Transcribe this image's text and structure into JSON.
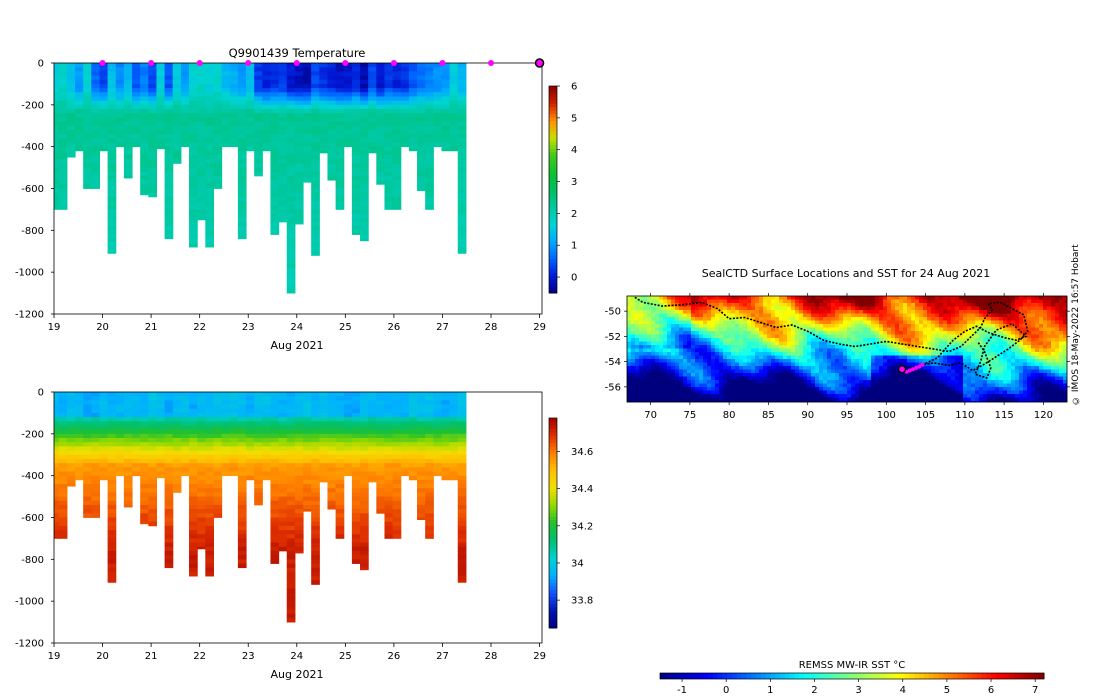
{
  "credit": "© IMOS 18-May-2022 16:57 Hobart",
  "colors": {
    "marker": "#ff00ff",
    "track": "#000000",
    "jet": [
      "#00007f",
      "#0000ff",
      "#007fff",
      "#00ffff",
      "#7fff7f",
      "#ffff00",
      "#ff7f00",
      "#ff0000",
      "#7f0000"
    ],
    "temp_map": [
      "#00007f",
      "#0019d8",
      "#0064ff",
      "#00a8ff",
      "#00d4d4",
      "#00c8a0",
      "#00be60",
      "#10c030",
      "#40c820",
      "#c8e000",
      "#ff9000",
      "#d02000",
      "#8a0000"
    ],
    "sal_map": [
      "#00007f",
      "#0014ae",
      "#1450ff",
      "#00b0ff",
      "#00d2d2",
      "#00c070",
      "#20c030",
      "#90d800",
      "#f0e000",
      "#ffc000",
      "#ff8000",
      "#e03000",
      "#a00000"
    ]
  },
  "chart_data": [
    {
      "id": "temperature_section",
      "type": "heatmap",
      "title": "Q9901439  Temperature",
      "xlabel": "Aug 2021",
      "ylabel": "",
      "x_ticks": [
        "19",
        "20",
        "21",
        "22",
        "23",
        "24",
        "25",
        "26",
        "27",
        "28",
        "29"
      ],
      "y_ticks": [
        "0",
        "-200",
        "-400",
        "-600",
        "-800",
        "-1000",
        "-1200"
      ],
      "xlim": [
        19,
        29.05
      ],
      "ylim": [
        -1200,
        0
      ],
      "colorbar": {
        "min": -0.5,
        "max": 6.0,
        "ticks": [
          "0",
          "1",
          "2",
          "3",
          "4",
          "5",
          "6"
        ]
      },
      "profile_markers_day": [
        20,
        21,
        22,
        23,
        24,
        25,
        26,
        27,
        28
      ],
      "latest_marker_day": 29,
      "profiles": {
        "start_day": 19.33,
        "bin_step_days": 0.1677,
        "max_depth_m": [
          700,
          700,
          450,
          420,
          600,
          600,
          420,
          910,
          400,
          550,
          400,
          630,
          640,
          410,
          840,
          480,
          400,
          880,
          750,
          880,
          600,
          400,
          400,
          840,
          420,
          540,
          420,
          820,
          760,
          1100,
          770,
          570,
          920,
          430,
          560,
          700,
          400,
          820,
          850,
          430,
          580,
          700,
          700,
          400,
          420,
          610,
          700,
          400,
          420,
          420,
          910
        ],
        "surface_temp_c": [
          1.6,
          1.8,
          1.4,
          1.0,
          1.7,
          0.6,
          0.4,
          1.4,
          0.9,
          1.3,
          0.5,
          0.8,
          0.4,
          1.6,
          0.5,
          1.6,
          1.0,
          1.7,
          1.8,
          1.6,
          1.7,
          1.3,
          1.2,
          1.0,
          1.4,
          0.3,
          0.1,
          0.2,
          0.3,
          0.0,
          -0.1,
          -0.2,
          0.4,
          0.2,
          0.1,
          -0.1,
          0.0,
          0.2,
          -0.2,
          0.4,
          0.0,
          0.3,
          0.1,
          0.2,
          0.5,
          0.7,
          0.8,
          0.9,
          1.0,
          1.6,
          1.3
        ],
        "deep_temp_c": 2.1,
        "thermocline_m": 180
      }
    },
    {
      "id": "salinity_section",
      "type": "heatmap",
      "title": "",
      "xlabel": "Aug 2021",
      "ylabel": "",
      "x_ticks": [
        "19",
        "20",
        "21",
        "22",
        "23",
        "24",
        "25",
        "26",
        "27",
        "28",
        "29"
      ],
      "y_ticks": [
        "0",
        "-200",
        "-400",
        "-600",
        "-800",
        "-1000",
        "-1200"
      ],
      "xlim": [
        19,
        29.05
      ],
      "ylim": [
        -1200,
        0
      ],
      "colorbar": {
        "min": 33.65,
        "max": 34.78,
        "ticks": [
          "33.8",
          "34",
          "34.2",
          "34.4",
          "34.6"
        ]
      },
      "profiles": {
        "surface_salinity": 33.95,
        "halocline_m": 160,
        "deep_salinity": 34.72
      }
    },
    {
      "id": "sst_map",
      "type": "heatmap",
      "title": "SealCTD Surface Locations and SST for 24 Aug 2021",
      "xlabel": "",
      "ylabel": "",
      "x_ticks": [
        "70",
        "75",
        "80",
        "85",
        "90",
        "95",
        "100",
        "105",
        "110",
        "115",
        "120"
      ],
      "y_ticks": [
        "-50",
        "-52",
        "-54",
        "-56"
      ],
      "xlim": [
        67,
        123
      ],
      "ylim": [
        -57.2,
        -48.8
      ],
      "colorbar": {
        "label": "REMSS MW-IR SST °C",
        "min": -1.5,
        "max": 7.2,
        "ticks": [
          "-1",
          "0",
          "1",
          "2",
          "3",
          "4",
          "5",
          "6",
          "7"
        ]
      },
      "current_location": [
        102.0,
        -54.6
      ],
      "recent_locations": [
        [
          102.6,
          -54.8
        ],
        [
          103.0,
          -54.7
        ],
        [
          103.4,
          -54.6
        ],
        [
          103.8,
          -54.5
        ],
        [
          104.2,
          -54.4
        ],
        [
          104.6,
          -54.25
        ]
      ],
      "track": [
        [
          68.0,
          -48.9
        ],
        [
          69.0,
          -49.3
        ],
        [
          71.5,
          -49.6
        ],
        [
          74.0,
          -49.5
        ],
        [
          76.5,
          -49.3
        ],
        [
          78.5,
          -49.8
        ],
        [
          80.0,
          -50.6
        ],
        [
          82.0,
          -50.5
        ],
        [
          84.0,
          -50.9
        ],
        [
          86.0,
          -51.3
        ],
        [
          88.0,
          -51.1
        ],
        [
          90.0,
          -51.6
        ],
        [
          92.0,
          -52.3
        ],
        [
          94.0,
          -52.6
        ],
        [
          96.0,
          -52.8
        ],
        [
          98.0,
          -52.6
        ],
        [
          100.0,
          -52.4
        ],
        [
          102.0,
          -52.6
        ],
        [
          104.0,
          -52.8
        ],
        [
          106.0,
          -53.0
        ],
        [
          108.0,
          -53.2
        ],
        [
          109.5,
          -52.8
        ],
        [
          111.0,
          -51.9
        ],
        [
          112.0,
          -51.3
        ],
        [
          112.5,
          -50.6
        ],
        [
          113.5,
          -49.9
        ],
        [
          113.0,
          -49.4
        ],
        [
          114.5,
          -49.3
        ],
        [
          116.0,
          -49.8
        ],
        [
          117.5,
          -50.3
        ],
        [
          118.0,
          -51.6
        ],
        [
          117.0,
          -52.3
        ],
        [
          115.5,
          -53.0
        ],
        [
          114.0,
          -53.6
        ],
        [
          112.5,
          -54.2
        ],
        [
          111.0,
          -54.7
        ],
        [
          109.5,
          -54.1
        ],
        [
          108.0,
          -54.3
        ],
        [
          106.0,
          -54.1
        ],
        [
          104.6,
          -54.25
        ]
      ],
      "track2": [
        [
          104.6,
          -54.25
        ],
        [
          106.5,
          -53.7
        ],
        [
          108.5,
          -52.3
        ],
        [
          110.0,
          -51.6
        ],
        [
          111.5,
          -51.2
        ],
        [
          113.0,
          -51.7
        ],
        [
          115.0,
          -52.1
        ],
        [
          116.5,
          -52.3
        ],
        [
          117.8,
          -52.0
        ],
        [
          116.0,
          -51.0
        ],
        [
          114.0,
          -51.5
        ],
        [
          112.5,
          -52.8
        ],
        [
          112.0,
          -54.0
        ],
        [
          111.3,
          -55.0
        ],
        [
          112.8,
          -55.3
        ],
        [
          113.3,
          -54.5
        ],
        [
          112.5,
          -53.2
        ],
        [
          111.6,
          -52.4
        ]
      ]
    }
  ]
}
